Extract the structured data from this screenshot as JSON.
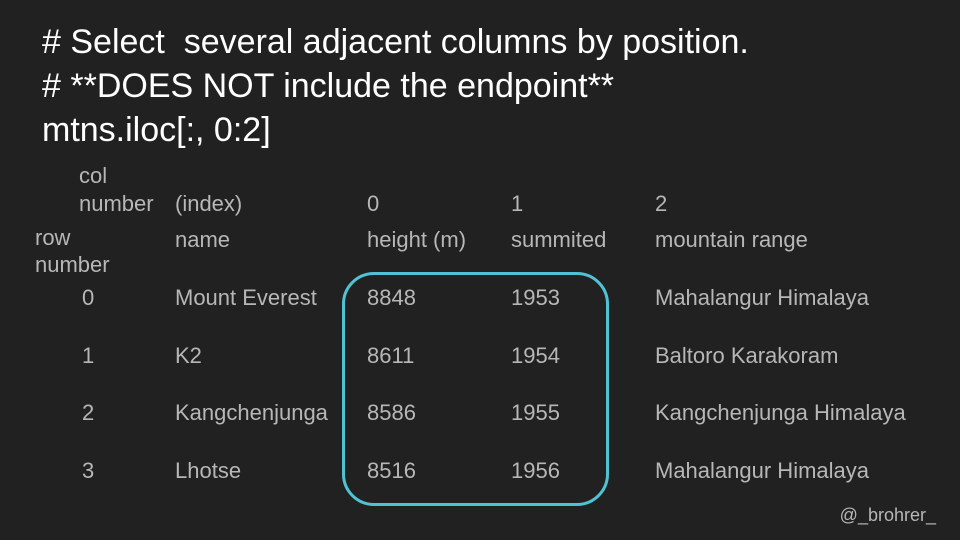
{
  "code_lines": [
    "# Select  several adjacent columns by position.",
    "# **DOES NOT include the endpoint**",
    "mtns.iloc[:, 0:2]"
  ],
  "table": {
    "col_number_label_1": "col",
    "col_number_label_2": "number",
    "row_number_label_1": "row",
    "row_number_label_2": "number",
    "index_label": "(index)",
    "col_numbers": [
      "0",
      "1",
      "2"
    ],
    "index_header": "name",
    "headers": [
      "height (m)",
      "summited",
      "mountain range"
    ],
    "rows": [
      {
        "num": "0",
        "name": "Mount Everest",
        "height": "8848",
        "summited": "1953",
        "range": "Mahalangur Himalaya"
      },
      {
        "num": "1",
        "name": "K2",
        "height": "8611",
        "summited": "1954",
        "range": "Baltoro Karakoram"
      },
      {
        "num": "2",
        "name": "Kangchenjunga",
        "height": "8586",
        "summited": "1955",
        "range": "Kangchenjunga Himalaya"
      },
      {
        "num": "3",
        "name": "Lhotse",
        "height": "8516",
        "summited": "1956",
        "range": "Mahalangur Himalaya"
      }
    ]
  },
  "colors": {
    "background": "#212121",
    "text": "#b7b7b7",
    "code": "#ffffff",
    "highlight": "#4fc3d4"
  },
  "credit": "@_brohrer_"
}
